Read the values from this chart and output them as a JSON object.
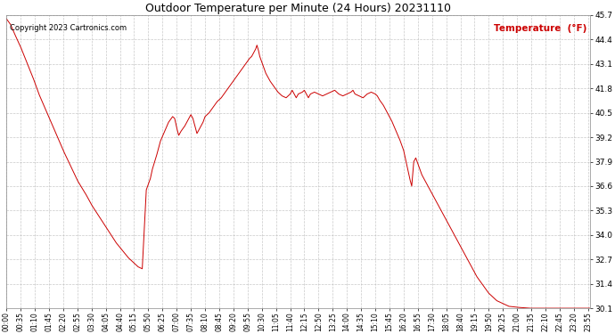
{
  "title": "Outdoor Temperature per Minute (24 Hours) 20231110",
  "copyright_text": "Copyright 2023 Cartronics.com",
  "legend_label": "Temperature  (°F)",
  "line_color": "#cc0000",
  "legend_color": "#cc0000",
  "copyright_color": "#000000",
  "background_color": "#ffffff",
  "grid_color": "#bbbbbb",
  "ylim": [
    30.1,
    45.7
  ],
  "yticks": [
    30.1,
    31.4,
    32.7,
    34.0,
    35.3,
    36.6,
    37.9,
    39.2,
    40.5,
    41.8,
    43.1,
    44.4,
    45.7
  ],
  "total_minutes": 1440,
  "key_points": [
    [
      0,
      45.5
    ],
    [
      10,
      45.2
    ],
    [
      20,
      44.7
    ],
    [
      35,
      44.0
    ],
    [
      50,
      43.2
    ],
    [
      65,
      42.4
    ],
    [
      80,
      41.5
    ],
    [
      100,
      40.5
    ],
    [
      120,
      39.5
    ],
    [
      140,
      38.5
    ],
    [
      160,
      37.6
    ],
    [
      175,
      36.9
    ],
    [
      195,
      36.2
    ],
    [
      210,
      35.6
    ],
    [
      225,
      35.1
    ],
    [
      240,
      34.6
    ],
    [
      255,
      34.1
    ],
    [
      270,
      33.6
    ],
    [
      285,
      33.2
    ],
    [
      300,
      32.8
    ],
    [
      315,
      32.5
    ],
    [
      325,
      32.3
    ],
    [
      335,
      32.2
    ],
    [
      345,
      36.4
    ],
    [
      355,
      37.0
    ],
    [
      360,
      37.5
    ],
    [
      370,
      38.2
    ],
    [
      380,
      39.0
    ],
    [
      390,
      39.5
    ],
    [
      400,
      40.0
    ],
    [
      410,
      40.3
    ],
    [
      415,
      40.2
    ],
    [
      420,
      39.7
    ],
    [
      425,
      39.3
    ],
    [
      430,
      39.5
    ],
    [
      440,
      39.8
    ],
    [
      450,
      40.2
    ],
    [
      455,
      40.4
    ],
    [
      460,
      40.2
    ],
    [
      465,
      39.8
    ],
    [
      470,
      39.4
    ],
    [
      475,
      39.6
    ],
    [
      485,
      40.0
    ],
    [
      490,
      40.3
    ],
    [
      500,
      40.5
    ],
    [
      510,
      40.8
    ],
    [
      520,
      41.1
    ],
    [
      530,
      41.3
    ],
    [
      540,
      41.6
    ],
    [
      550,
      41.9
    ],
    [
      560,
      42.2
    ],
    [
      570,
      42.5
    ],
    [
      580,
      42.8
    ],
    [
      590,
      43.1
    ],
    [
      600,
      43.4
    ],
    [
      605,
      43.5
    ],
    [
      610,
      43.7
    ],
    [
      615,
      43.9
    ],
    [
      618,
      44.1
    ],
    [
      622,
      43.8
    ],
    [
      625,
      43.5
    ],
    [
      630,
      43.2
    ],
    [
      635,
      42.9
    ],
    [
      640,
      42.6
    ],
    [
      650,
      42.2
    ],
    [
      660,
      41.9
    ],
    [
      670,
      41.6
    ],
    [
      680,
      41.4
    ],
    [
      690,
      41.3
    ],
    [
      700,
      41.5
    ],
    [
      705,
      41.7
    ],
    [
      710,
      41.5
    ],
    [
      715,
      41.3
    ],
    [
      720,
      41.5
    ],
    [
      730,
      41.6
    ],
    [
      735,
      41.7
    ],
    [
      740,
      41.5
    ],
    [
      745,
      41.3
    ],
    [
      750,
      41.5
    ],
    [
      760,
      41.6
    ],
    [
      770,
      41.5
    ],
    [
      780,
      41.4
    ],
    [
      790,
      41.5
    ],
    [
      800,
      41.6
    ],
    [
      810,
      41.7
    ],
    [
      820,
      41.5
    ],
    [
      830,
      41.4
    ],
    [
      840,
      41.5
    ],
    [
      850,
      41.6
    ],
    [
      855,
      41.7
    ],
    [
      860,
      41.5
    ],
    [
      870,
      41.4
    ],
    [
      880,
      41.3
    ],
    [
      890,
      41.5
    ],
    [
      900,
      41.6
    ],
    [
      910,
      41.5
    ],
    [
      915,
      41.4
    ],
    [
      920,
      41.2
    ],
    [
      930,
      40.9
    ],
    [
      940,
      40.5
    ],
    [
      950,
      40.1
    ],
    [
      960,
      39.6
    ],
    [
      970,
      39.1
    ],
    [
      980,
      38.5
    ],
    [
      985,
      38.0
    ],
    [
      990,
      37.5
    ],
    [
      995,
      37.0
    ],
    [
      1000,
      36.6
    ],
    [
      1005,
      37.9
    ],
    [
      1010,
      38.1
    ],
    [
      1015,
      37.8
    ],
    [
      1020,
      37.5
    ],
    [
      1025,
      37.2
    ],
    [
      1030,
      37.0
    ],
    [
      1040,
      36.6
    ],
    [
      1050,
      36.2
    ],
    [
      1060,
      35.8
    ],
    [
      1070,
      35.4
    ],
    [
      1080,
      35.0
    ],
    [
      1090,
      34.6
    ],
    [
      1100,
      34.2
    ],
    [
      1110,
      33.8
    ],
    [
      1120,
      33.4
    ],
    [
      1130,
      33.0
    ],
    [
      1140,
      32.6
    ],
    [
      1150,
      32.2
    ],
    [
      1160,
      31.8
    ],
    [
      1170,
      31.5
    ],
    [
      1180,
      31.2
    ],
    [
      1190,
      30.9
    ],
    [
      1200,
      30.7
    ],
    [
      1210,
      30.5
    ],
    [
      1220,
      30.4
    ],
    [
      1230,
      30.3
    ],
    [
      1240,
      30.2
    ],
    [
      1260,
      30.15
    ],
    [
      1290,
      30.1
    ],
    [
      1320,
      30.1
    ],
    [
      1350,
      30.1
    ],
    [
      1380,
      30.1
    ],
    [
      1410,
      30.1
    ],
    [
      1439,
      30.1
    ]
  ],
  "xtick_step": 35,
  "figsize": [
    6.9,
    3.75
  ],
  "dpi": 100
}
